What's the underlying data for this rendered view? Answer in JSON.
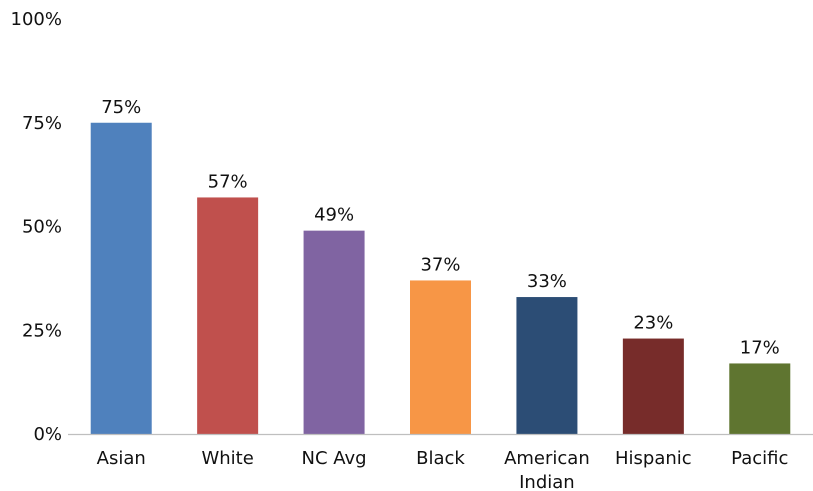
{
  "chart_data": {
    "type": "bar",
    "title": "",
    "xlabel": "",
    "ylabel": "",
    "ylim": [
      0,
      100
    ],
    "yticks": [
      0,
      25,
      50,
      75,
      100
    ],
    "ytick_labels": [
      "0%",
      "25%",
      "50%",
      "75%",
      "100%"
    ],
    "grid": false,
    "legend": "none",
    "categories": [
      [
        "Asian"
      ],
      [
        "White"
      ],
      [
        "NC Avg"
      ],
      [
        "Black"
      ],
      [
        "American",
        "Indian"
      ],
      [
        "Hispanic"
      ],
      [
        "Pacific"
      ]
    ],
    "values": [
      75,
      57,
      49,
      37,
      33,
      23,
      17
    ],
    "data_labels": [
      "75%",
      "57%",
      "49%",
      "37%",
      "33%",
      "23%",
      "17%"
    ],
    "colors": [
      "#4f81bd",
      "#c0504d",
      "#8064a2",
      "#f79646",
      "#2c4d75",
      "#772c2a",
      "#5f7530"
    ]
  }
}
